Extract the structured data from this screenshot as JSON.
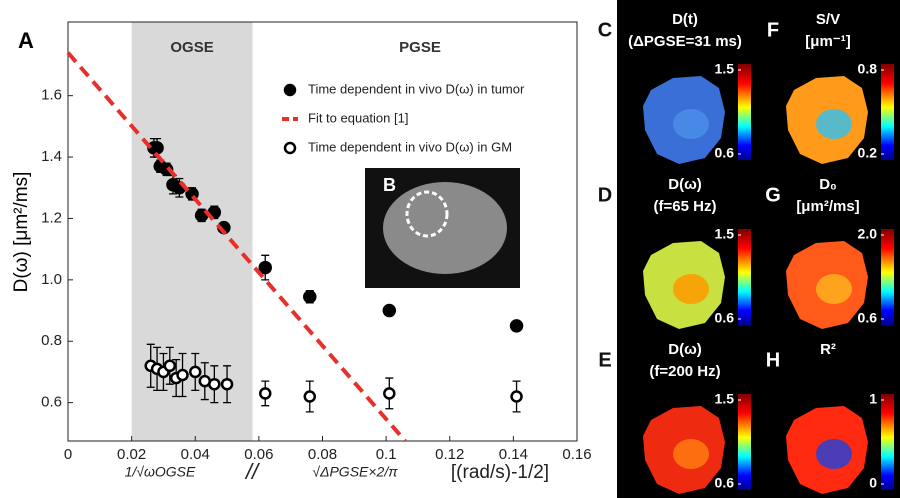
{
  "chart_data": {
    "type": "scatter",
    "panel_label": "A",
    "y_label": "D(ω) [μm²/ms]",
    "x_label": "[(rad/s)-1/2]",
    "xlim": [
      0,
      0.16
    ],
    "ylim": [
      0.475,
      1.84
    ],
    "xticks": [
      0,
      0.02,
      0.04,
      0.06,
      0.08,
      0.1,
      0.12,
      0.14,
      0.16
    ],
    "yticks": [
      0.6,
      0.8,
      {
        "value": 1,
        "label": "1.0"
      },
      1.2,
      1.4,
      1.6
    ],
    "regions": [
      {
        "label": "OGSE",
        "xlim": [
          0.02,
          0.058
        ],
        "color": "#d9d9d9"
      }
    ],
    "region_annotation": "PGSE",
    "x_annotations": [
      "1/√ωOGSE",
      "//",
      "√ΔPGSE×2/π"
    ],
    "legend": "upper right",
    "series": [
      {
        "name": "Time dependent in vivo D(ω) in tumor",
        "color": "#000",
        "marker": "filled",
        "x": [
          0.027,
          0.028,
          0.029,
          0.031,
          0.033,
          0.035,
          0.039,
          0.042,
          0.046,
          0.049,
          0.062,
          0.076,
          0.101,
          0.141
        ],
        "values": [
          1.43,
          1.43,
          1.37,
          1.36,
          1.31,
          1.3,
          1.28,
          1.21,
          1.22,
          1.17,
          1.04,
          0.945,
          0.9,
          0.85
        ],
        "errors": [
          0.03,
          0.03,
          0.02,
          0.02,
          0.03,
          0.03,
          0.02,
          0.02,
          0.02,
          0.01,
          0.04,
          0.02,
          0.015,
          0.015
        ]
      },
      {
        "name": "Fit to equation [1]",
        "color": "#e8302a",
        "marker": "dashed-line",
        "x": [
          0,
          0.106
        ],
        "values": [
          1.74,
          0.475
        ]
      },
      {
        "name": "Time dependent in vivo D(ω) in GM",
        "color": "#000",
        "marker": "open",
        "x": [
          0.026,
          0.028,
          0.03,
          0.032,
          0.034,
          0.036,
          0.04,
          0.043,
          0.046,
          0.05,
          0.062,
          0.076,
          0.101,
          0.141
        ],
        "values": [
          0.72,
          0.71,
          0.7,
          0.72,
          0.68,
          0.69,
          0.7,
          0.67,
          0.66,
          0.66,
          0.63,
          0.62,
          0.63,
          0.62
        ],
        "errors": [
          0.07,
          0.07,
          0.06,
          0.06,
          0.06,
          0.07,
          0.06,
          0.06,
          0.06,
          0.06,
          0.04,
          0.05,
          0.05,
          0.05
        ]
      }
    ]
  },
  "inset_label": "B",
  "maps": [
    {
      "label": "C",
      "title": [
        "D(t)",
        "(ΔPGSE=31 ms)"
      ],
      "colorbar_ticks": [
        0.6,
        1.5
      ]
    },
    {
      "label": "F",
      "title": [
        "S/V",
        "[μm⁻¹]"
      ],
      "colorbar_ticks": [
        0.2,
        0.8
      ]
    },
    {
      "label": "D",
      "title": [
        "D(ω)",
        "(f=65 Hz)"
      ],
      "colorbar_ticks": [
        0.6,
        1.5
      ]
    },
    {
      "label": "G",
      "title": [
        "D₀",
        "[μm²/ms]"
      ],
      "colorbar_ticks": [
        0.6,
        {
          "value": 2,
          "label": "2.0"
        }
      ]
    },
    {
      "label": "E",
      "title": [
        "D(ω)",
        "(f=200 Hz)"
      ],
      "colorbar_ticks": [
        0.6,
        1.5
      ]
    },
    {
      "label": "H",
      "title": [
        "R²"
      ],
      "colorbar_ticks": [
        0,
        1
      ]
    }
  ]
}
